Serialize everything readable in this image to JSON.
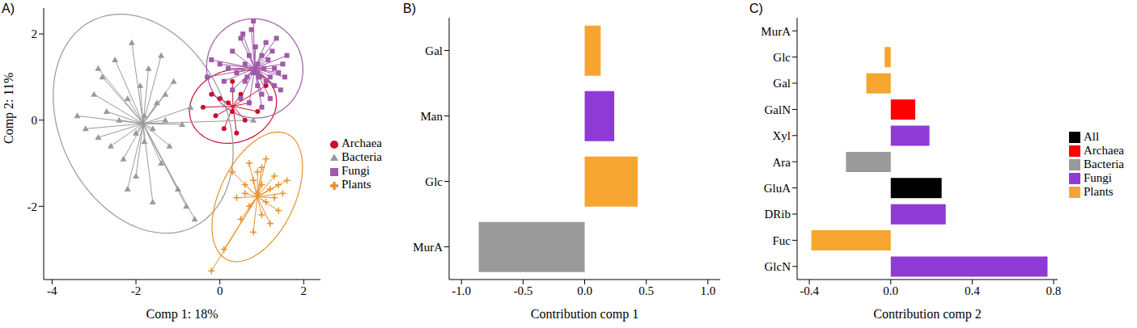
{
  "chart_data": [
    {
      "type": "scatter",
      "title": "A)",
      "x_label": "Comp 1: 18%",
      "y_label": "Comp 2: 11%",
      "xlim": [
        -4.2,
        2.4
      ],
      "xticks": [
        -4,
        -2,
        0,
        2
      ],
      "ylim": [
        -3.7,
        2.6
      ],
      "yticks": [
        -2,
        0,
        2
      ],
      "legend": "right",
      "series": [
        {
          "name": "Archaea",
          "color": "#c8102e",
          "marker": "circle",
          "values": [
            [
              -0.4,
              0.3
            ],
            [
              -0.2,
              0.6
            ],
            [
              -0.1,
              0.1
            ],
            [
              0.0,
              0.5
            ],
            [
              0.1,
              -0.2
            ],
            [
              0.2,
              0.4
            ],
            [
              0.3,
              0.9
            ],
            [
              0.3,
              0.2
            ],
            [
              0.5,
              0.6
            ],
            [
              0.6,
              0.0
            ],
            [
              0.7,
              0.4
            ],
            [
              0.9,
              0.2
            ],
            [
              1.1,
              0.8
            ],
            [
              0.4,
              -0.3
            ]
          ]
        },
        {
          "name": "Bacteria",
          "color": "#9a9a9a",
          "marker": "triangle",
          "values": [
            [
              -3.4,
              0.1
            ],
            [
              -3.2,
              -0.2
            ],
            [
              -3.0,
              0.6
            ],
            [
              -2.9,
              -0.4
            ],
            [
              -2.8,
              1.0
            ],
            [
              -2.7,
              0.2
            ],
            [
              -2.6,
              -0.6
            ],
            [
              -2.5,
              1.4
            ],
            [
              -2.4,
              0.0
            ],
            [
              -2.3,
              -0.9
            ],
            [
              -2.2,
              0.5
            ],
            [
              -2.1,
              1.8
            ],
            [
              -2.0,
              -0.3
            ],
            [
              -2.0,
              -1.3
            ],
            [
              -1.9,
              0.8
            ],
            [
              -1.8,
              0.1
            ],
            [
              -1.8,
              -0.5
            ],
            [
              -1.7,
              1.2
            ],
            [
              -1.6,
              -0.2
            ],
            [
              -1.5,
              0.4
            ],
            [
              -1.4,
              -1.0
            ],
            [
              -1.4,
              1.5
            ],
            [
              -1.3,
              0.0
            ],
            [
              -1.2,
              -0.6
            ],
            [
              -1.1,
              0.9
            ],
            [
              -1.0,
              -1.6
            ],
            [
              -0.9,
              -0.1
            ],
            [
              -0.8,
              -2.0
            ],
            [
              -0.7,
              0.3
            ],
            [
              -0.6,
              -2.3
            ],
            [
              -2.2,
              -1.6
            ],
            [
              -2.9,
              1.2
            ],
            [
              -1.6,
              -1.9
            ],
            [
              0.8,
              0.0
            ],
            [
              -1.3,
              0.6
            ]
          ]
        },
        {
          "name": "Fungi",
          "color": "#a05aa8",
          "marker": "square",
          "values": [
            [
              -0.3,
              1.0
            ],
            [
              -0.2,
              1.4
            ],
            [
              0.0,
              1.3
            ],
            [
              0.1,
              0.9
            ],
            [
              0.2,
              1.2
            ],
            [
              0.3,
              1.6
            ],
            [
              0.3,
              0.7
            ],
            [
              0.4,
              1.1
            ],
            [
              0.5,
              1.9
            ],
            [
              0.5,
              0.5
            ],
            [
              0.6,
              1.3
            ],
            [
              0.6,
              0.9
            ],
            [
              0.7,
              1.5
            ],
            [
              0.7,
              0.4
            ],
            [
              0.8,
              1.1
            ],
            [
              0.8,
              2.3
            ],
            [
              0.85,
              1.7
            ],
            [
              0.9,
              0.8
            ],
            [
              0.9,
              1.3
            ],
            [
              0.95,
              1.0
            ],
            [
              1.0,
              1.5
            ],
            [
              1.0,
              0.6
            ],
            [
              1.05,
              1.2
            ],
            [
              1.1,
              0.9
            ],
            [
              1.1,
              1.8
            ],
            [
              1.15,
              1.4
            ],
            [
              1.2,
              1.0
            ],
            [
              1.2,
              0.5
            ],
            [
              1.25,
              1.6
            ],
            [
              1.3,
              1.2
            ],
            [
              1.3,
              0.8
            ],
            [
              1.35,
              1.9
            ],
            [
              1.4,
              1.1
            ],
            [
              1.45,
              0.7
            ],
            [
              1.5,
              1.3
            ],
            [
              1.55,
              1.0
            ],
            [
              1.6,
              1.5
            ],
            [
              0.75,
              2.1
            ],
            [
              0.55,
              2.0
            ],
            [
              1.0,
              0.3
            ],
            [
              0.65,
              1.0
            ],
            [
              0.9,
              1.1
            ]
          ]
        },
        {
          "name": "Plants",
          "color": "#e8902a",
          "marker": "plus",
          "values": [
            [
              0.3,
              -1.2
            ],
            [
              0.4,
              -1.8
            ],
            [
              0.5,
              -2.3
            ],
            [
              0.6,
              -1.5
            ],
            [
              0.7,
              -1.0
            ],
            [
              0.7,
              -2.0
            ],
            [
              0.8,
              -1.4
            ],
            [
              0.8,
              -2.6
            ],
            [
              0.9,
              -1.7
            ],
            [
              0.9,
              -1.2
            ],
            [
              1.0,
              -2.2
            ],
            [
              1.0,
              -1.5
            ],
            [
              1.1,
              -1.9
            ],
            [
              1.1,
              -0.9
            ],
            [
              1.2,
              -1.6
            ],
            [
              1.2,
              -2.4
            ],
            [
              1.3,
              -1.3
            ],
            [
              1.3,
              -1.8
            ],
            [
              1.4,
              -1.5
            ],
            [
              1.5,
              -1.7
            ],
            [
              1.4,
              -2.1
            ],
            [
              1.0,
              -1.1
            ],
            [
              0.6,
              -1.7
            ],
            [
              -0.2,
              -3.5
            ],
            [
              0.1,
              -3.0
            ],
            [
              1.6,
              -1.4
            ]
          ]
        }
      ]
    },
    {
      "type": "bar",
      "orientation": "horizontal",
      "title": "B)",
      "x_label": "Contribution comp 1",
      "categories": [
        "Gal",
        "Man",
        "Glc",
        "MurA"
      ],
      "values": [
        0.13,
        0.24,
        0.43,
        -0.86
      ],
      "colors": [
        "#f5a530",
        "#8e3bd6",
        "#f5a530",
        "#9a9a9a"
      ],
      "xlim": [
        -1.1,
        1.1
      ],
      "xticks": [
        {
          "value": -1,
          "label": "-1.0"
        },
        -0.5,
        {
          "value": 0,
          "label": "0.0"
        },
        0.5,
        {
          "value": 1,
          "label": "1.0"
        }
      ]
    },
    {
      "type": "bar",
      "orientation": "horizontal",
      "title": "C)",
      "x_label": "Contribution comp 2",
      "categories": [
        "MurA",
        "Glc",
        "Gal",
        "GalN",
        "Xyl",
        "Ara",
        "GluA",
        "DRib",
        "Fuc",
        "GlcN"
      ],
      "series": [
        {
          "name": "All",
          "color": "#000000",
          "values": [
            null,
            null,
            null,
            null,
            null,
            null,
            0.25,
            null,
            null,
            null
          ]
        },
        {
          "name": "Archaea",
          "color": "#ff0000",
          "values": [
            null,
            null,
            null,
            0.12,
            null,
            null,
            null,
            null,
            null,
            null
          ]
        },
        {
          "name": "Bacteria",
          "color": "#9a9a9a",
          "values": [
            null,
            null,
            null,
            null,
            null,
            -0.22,
            null,
            null,
            null,
            null
          ]
        },
        {
          "name": "Fungi",
          "color": "#8e3bd6",
          "values": [
            null,
            null,
            null,
            null,
            0.19,
            null,
            null,
            0.27,
            null,
            0.77
          ]
        },
        {
          "name": "Plants",
          "color": "#f5a530",
          "values": [
            null,
            -0.03,
            -0.12,
            null,
            null,
            null,
            null,
            null,
            -0.39,
            null
          ]
        }
      ],
      "xlim": [
        -0.46,
        0.82
      ],
      "xticks": [
        -0.4,
        {
          "value": 0,
          "label": "0.0"
        },
        0.4,
        0.8
      ],
      "legend": "right"
    }
  ]
}
